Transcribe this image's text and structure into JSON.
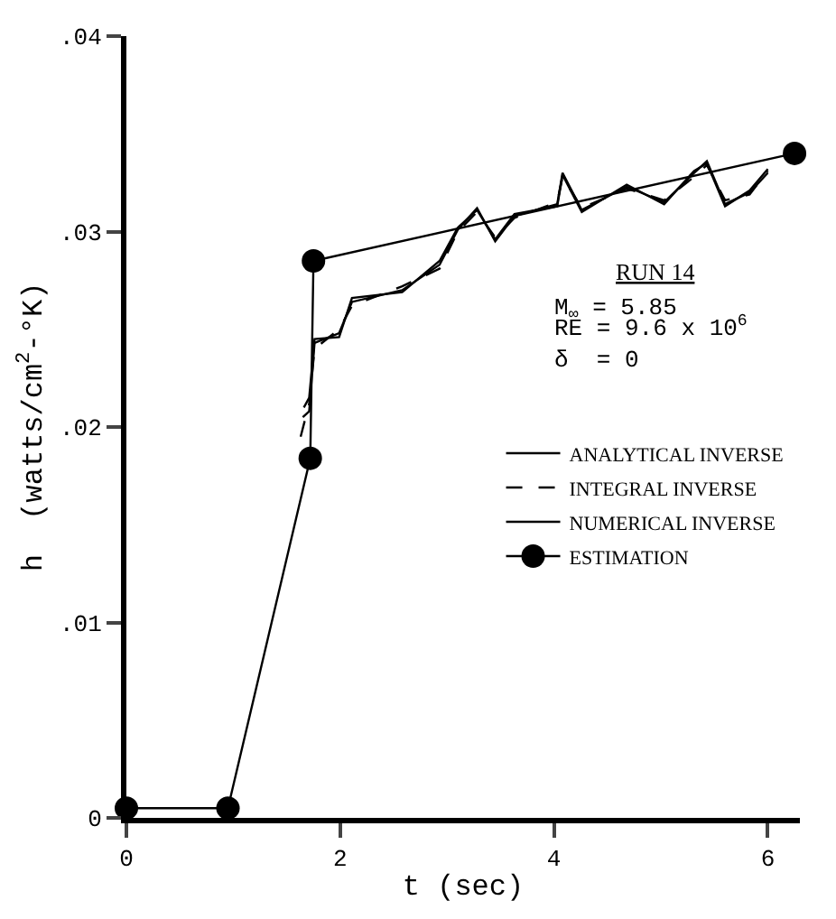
{
  "chart_data": {
    "type": "line",
    "xlabel": "t (sec)",
    "ylabel": "h  (watts/cm$^{2}$-°K)",
    "xlim": [
      0,
      6.3
    ],
    "xticks": [
      0,
      2,
      4,
      6
    ],
    "ylim": [
      0,
      0.04
    ],
    "yticks": [
      {
        "value": 0,
        "label": "0"
      },
      {
        "value": 0.01,
        "label": ".01"
      },
      {
        "value": 0.02,
        "label": ".02"
      },
      {
        "value": 0.03,
        "label": ".03"
      },
      {
        "value": 0.04,
        "label": ".04"
      }
    ],
    "legend": "right",
    "annotations": [
      "RUN 14",
      "M$_{∞}$ = 5.85",
      "RE = 9.6 x 10$^{6}$",
      "δ  = 0"
    ],
    "series": [
      {
        "name": "ANALYTICAL INVERSE",
        "color": "#000000",
        "line_style": "solid",
        "marker": "none",
        "x": [
          1.65,
          1.71,
          1.76,
          1.99,
          2.11,
          2.58,
          2.93,
          3.1,
          3.28,
          3.45,
          3.63,
          4.03,
          4.08,
          4.26,
          4.68,
          5.03,
          5.31,
          5.43,
          5.6,
          5.83,
          6.0
        ],
        "values": [
          0.0205,
          0.0208,
          0.0243,
          0.0248,
          0.0264,
          0.027,
          0.0283,
          0.0301,
          0.0312,
          0.0295,
          0.0308,
          0.0314,
          0.033,
          0.0311,
          0.0323,
          0.0315,
          0.033,
          0.0336,
          0.0314,
          0.032,
          0.033
        ]
      },
      {
        "name": "INTEGRAL INVERSE",
        "color": "#000000",
        "line_style": "dashed",
        "marker": "none",
        "x": [
          1.63,
          1.71,
          1.76,
          1.99,
          2.11,
          2.58,
          2.93,
          3.1,
          3.28,
          3.45,
          3.63,
          4.03,
          4.08,
          4.26,
          4.68,
          5.03,
          5.31,
          5.43,
          5.6,
          5.83,
          6.0
        ],
        "values": [
          0.0195,
          0.0212,
          0.024,
          0.025,
          0.0262,
          0.0272,
          0.0281,
          0.03,
          0.031,
          0.0297,
          0.0307,
          0.0315,
          0.0328,
          0.0312,
          0.0322,
          0.0316,
          0.0328,
          0.0334,
          0.0316,
          0.0319,
          0.0331
        ]
      },
      {
        "name": "NUMERICAL INVERSE",
        "color": "#000000",
        "line_style": "solid",
        "marker": "none",
        "x": [
          1.66,
          1.71,
          1.76,
          1.99,
          2.11,
          2.58,
          2.93,
          3.1,
          3.28,
          3.45,
          3.63,
          4.03,
          4.08,
          4.26,
          4.68,
          5.03,
          5.31,
          5.43,
          5.6,
          5.83,
          6.0
        ],
        "values": [
          0.021,
          0.0215,
          0.0245,
          0.0246,
          0.0266,
          0.0269,
          0.0285,
          0.0302,
          0.0311,
          0.0296,
          0.0309,
          0.0313,
          0.0329,
          0.031,
          0.0324,
          0.0314,
          0.0331,
          0.0335,
          0.0313,
          0.0321,
          0.0332
        ]
      },
      {
        "name": "ESTIMATION",
        "color": "#000000",
        "line_style": "solid",
        "marker": "circle",
        "x": [
          0,
          0.95,
          1.72,
          1.75,
          6.25
        ],
        "values": [
          0.0005,
          0.0005,
          0.0184,
          0.0285,
          0.034
        ]
      }
    ]
  }
}
